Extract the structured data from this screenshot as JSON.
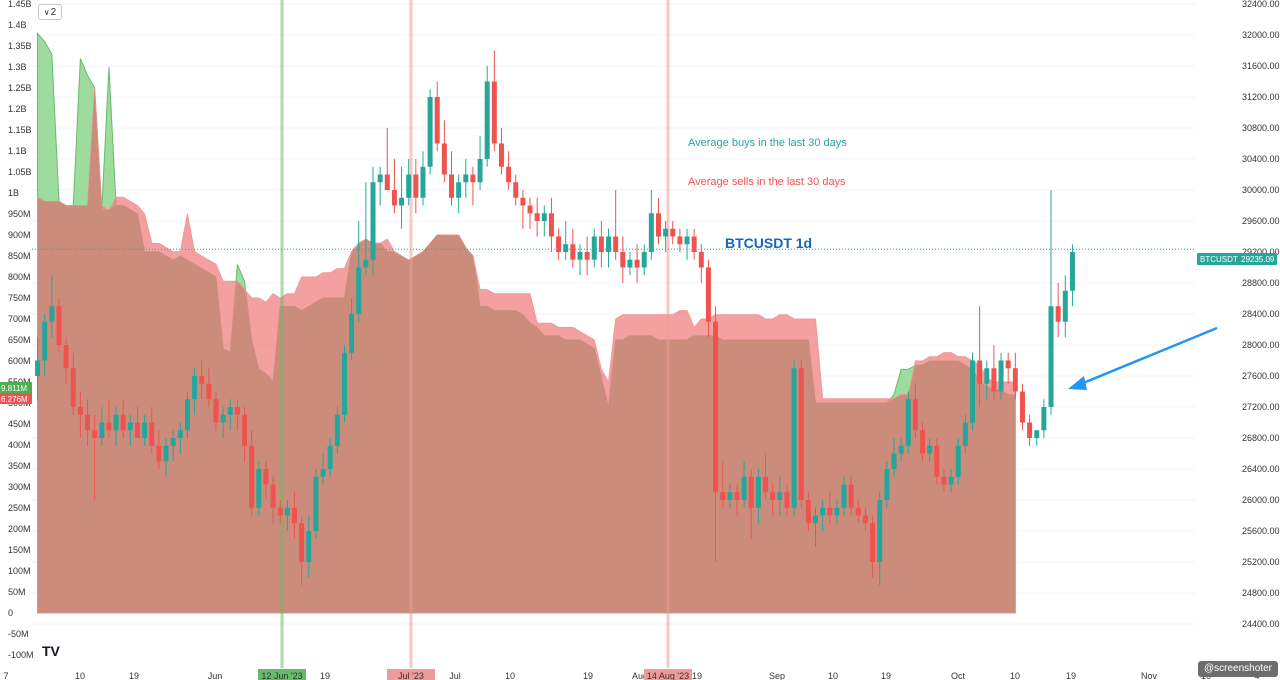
{
  "toolbar": {
    "indicator_count": "2",
    "chevron_icon": "chevron-down-icon"
  },
  "logo_text": "TV",
  "watermark": "@screenshoter",
  "chart_data": {
    "type": "candlestick",
    "title": "BTCUSDT 1d",
    "symbol": "BTCUSDT",
    "last_price": "29235.09",
    "last_price_value": 29235.09,
    "annotations": {
      "buys": "Average buys in the last 30 days",
      "sells": "Average sells in the last 30 days"
    },
    "volume_labels": {
      "buys": "9.811M",
      "sells": "6.276M"
    },
    "left_axis": {
      "ticks": [
        "1.45B",
        "1.4B",
        "1.35B",
        "1.3B",
        "1.25B",
        "1.2B",
        "1.15B",
        "1.1B",
        "1.05B",
        "1B",
        "950M",
        "900M",
        "850M",
        "800M",
        "750M",
        "700M",
        "650M",
        "600M",
        "550M",
        "500M",
        "450M",
        "400M",
        "350M",
        "300M",
        "250M",
        "200M",
        "150M",
        "100M",
        "50M",
        "0",
        "-50M",
        "-100M"
      ],
      "range": [
        -100000000,
        1450000000
      ]
    },
    "right_axis": {
      "ticks": [
        "32400.00",
        "32000.00",
        "31600.00",
        "31200.00",
        "30800.00",
        "30400.00",
        "30000.00",
        "29600.00",
        "29200.00",
        "28800.00",
        "28400.00",
        "28000.00",
        "27600.00",
        "27200.00",
        "26800.00",
        "26400.00",
        "26000.00",
        "25600.00",
        "25200.00",
        "24800.00",
        "24400.00"
      ],
      "range": [
        24000,
        32400
      ]
    },
    "x_axis": {
      "labels": [
        "7",
        "10",
        "19",
        "Jun",
        "19",
        "Jul",
        "10",
        "19",
        "Aug",
        "19",
        "Sep",
        "10",
        "19",
        "Oct",
        "10",
        "19",
        "Nov",
        "10",
        "4"
      ],
      "highlighted": [
        {
          "text": "12 Jun '23",
          "color": "#66bb6a"
        },
        {
          "text": "Jul '23",
          "color": "#ef9a9a"
        },
        {
          "text": "14 Aug '23",
          "color": "#ef9a9a"
        }
      ]
    },
    "vertical_markers": [
      {
        "date": "12 Jun '23",
        "color": "#66bb6a"
      },
      {
        "date": "Jul '23",
        "color": "#ef9a9a"
      },
      {
        "date": "14 Aug '23",
        "color": "#ef9a9a"
      }
    ],
    "colors": {
      "up": "#26a69a",
      "down": "#ef5350",
      "buys_area": "#7ed07e",
      "sells_area": "#f08080",
      "overlap": "#c8897a",
      "arrow": "#2196f3",
      "title": "#1565c0"
    },
    "buys_avg_volume": [
      1380000000.0,
      1360000000.0,
      1330000000.0,
      980000000.0,
      970000000.0,
      970000000.0,
      1320000000.0,
      1280000000.0,
      1250000000.0,
      960000000.0,
      1300000000.0,
      970000000.0,
      970000000.0,
      960000000.0,
      950000000.0,
      860000000.0,
      860000000.0,
      860000000.0,
      850000000.0,
      840000000.0,
      850000000.0,
      840000000.0,
      830000000.0,
      820000000.0,
      810000000.0,
      800000000.0,
      630000000.0,
      620000000.0,
      830000000.0,
      790000000.0,
      650000000.0,
      580000000.0,
      570000000.0,
      550000000.0,
      730000000.0,
      730000000.0,
      730000000.0,
      720000000.0,
      730000000.0,
      740000000.0,
      750000000.0,
      750000000.0,
      750000000.0,
      750000000.0,
      860000000.0,
      880000000.0,
      890000000.0,
      880000000.0,
      880000000.0,
      860000000.0,
      860000000.0,
      850000000.0,
      840000000.0,
      850000000.0,
      860000000.0,
      880000000.0,
      900000000.0,
      900000000.0,
      900000000.0,
      900000000.0,
      870000000.0,
      850000000.0,
      730000000.0,
      730000000.0,
      720000000.0,
      720000000.0,
      720000000.0,
      720000000.0,
      710000000.0,
      690000000.0,
      680000000.0,
      660000000.0,
      660000000.0,
      660000000.0,
      650000000.0,
      650000000.0,
      650000000.0,
      640000000.0,
      630000000.0,
      560000000.0,
      490000000.0,
      650000000.0,
      650000000.0,
      660000000.0,
      660000000.0,
      660000000.0,
      660000000.0,
      650000000.0,
      650000000.0,
      650000000.0,
      650000000.0,
      650000000.0,
      660000000.0,
      660000000.0,
      660000000.0,
      660000000.0,
      650000000.0,
      650000000.0,
      650000000.0,
      650000000.0,
      650000000.0,
      650000000.0,
      650000000.0,
      650000000.0,
      650000000.0,
      650000000.0,
      650000000.0,
      650000000.0,
      650000000.0,
      500000000.0,
      500000000.0,
      500000000.0,
      500000000.0,
      500000000.0,
      500000000.0,
      500000000.0,
      500000000.0,
      500000000.0,
      500000000.0,
      500000000.0,
      520000000.0,
      580000000.0,
      580000000.0,
      590000000.0,
      590000000.0,
      600000000.0,
      600000000.0,
      600000000.0,
      600000000.0,
      600000000.0,
      590000000.0,
      580000000.0,
      550000000.0,
      540000000.0,
      530000000.0,
      530000000.0,
      520000000.0,
      520000000.0
    ],
    "sells_avg_volume": [
      990000000.0,
      980000000.0,
      980000000.0,
      980000000.0,
      970000000.0,
      970000000.0,
      970000000.0,
      970000000.0,
      1250000000.0,
      970000000.0,
      960000000.0,
      990000000.0,
      990000000.0,
      980000000.0,
      970000000.0,
      950000000.0,
      880000000.0,
      880000000.0,
      870000000.0,
      860000000.0,
      860000000.0,
      950000000.0,
      860000000.0,
      850000000.0,
      840000000.0,
      830000000.0,
      790000000.0,
      790000000.0,
      790000000.0,
      770000000.0,
      750000000.0,
      750000000.0,
      740000000.0,
      760000000.0,
      750000000.0,
      760000000.0,
      760000000.0,
      800000000.0,
      800000000.0,
      800000000.0,
      810000000.0,
      810000000.0,
      820000000.0,
      820000000.0,
      860000000.0,
      880000000.0,
      890000000.0,
      880000000.0,
      880000000.0,
      890000000.0,
      860000000.0,
      850000000.0,
      840000000.0,
      850000000.0,
      860000000.0,
      880000000.0,
      900000000.0,
      900000000.0,
      900000000.0,
      900000000.0,
      870000000.0,
      850000000.0,
      770000000.0,
      770000000.0,
      760000000.0,
      760000000.0,
      760000000.0,
      760000000.0,
      760000000.0,
      760000000.0,
      690000000.0,
      690000000.0,
      690000000.0,
      680000000.0,
      680000000.0,
      680000000.0,
      670000000.0,
      660000000.0,
      650000000.0,
      580000000.0,
      550000000.0,
      700000000.0,
      710000000.0,
      710000000.0,
      710000000.0,
      710000000.0,
      710000000.0,
      710000000.0,
      710000000.0,
      710000000.0,
      720000000.0,
      720000000.0,
      680000000.0,
      700000000.0,
      700000000.0,
      710000000.0,
      710000000.0,
      710000000.0,
      710000000.0,
      710000000.0,
      710000000.0,
      710000000.0,
      700000000.0,
      700000000.0,
      710000000.0,
      710000000.0,
      700000000.0,
      700000000.0,
      700000000.0,
      700000000.0,
      510000000.0,
      510000000.0,
      510000000.0,
      510000000.0,
      510000000.0,
      510000000.0,
      510000000.0,
      510000000.0,
      510000000.0,
      510000000.0,
      510000000.0,
      520000000.0,
      520000000.0,
      600000000.0,
      600000000.0,
      610000000.0,
      610000000.0,
      620000000.0,
      620000000.0,
      610000000.0,
      610000000.0,
      600000000.0,
      590000000.0,
      560000000.0,
      550000000.0,
      550000000.0,
      550000000.0,
      550000000.0
    ],
    "candles": [
      [
        27600,
        28100,
        27300,
        27800
      ],
      [
        27800,
        28400,
        27600,
        28300
      ],
      [
        28300,
        28900,
        28100,
        28500
      ],
      [
        28500,
        28600,
        27900,
        28000
      ],
      [
        28000,
        28100,
        27500,
        27700
      ],
      [
        27700,
        27900,
        27100,
        27200
      ],
      [
        27200,
        27400,
        26800,
        27100
      ],
      [
        27100,
        27300,
        26700,
        26900
      ],
      [
        26900,
        27100,
        26000,
        26800
      ],
      [
        26800,
        27200,
        26700,
        27000
      ],
      [
        27000,
        27300,
        26800,
        26900
      ],
      [
        26900,
        27200,
        26700,
        27100
      ],
      [
        27100,
        27300,
        26800,
        26900
      ],
      [
        26900,
        27100,
        26700,
        27000
      ],
      [
        27000,
        27200,
        26800,
        26800
      ],
      [
        26800,
        27100,
        26700,
        27000
      ],
      [
        27000,
        27200,
        26600,
        26700
      ],
      [
        26700,
        26900,
        26400,
        26500
      ],
      [
        26500,
        26800,
        26300,
        26700
      ],
      [
        26700,
        26900,
        26500,
        26800
      ],
      [
        26800,
        27000,
        26600,
        26900
      ],
      [
        26900,
        27400,
        26800,
        27300
      ],
      [
        27300,
        27700,
        27100,
        27600
      ],
      [
        27600,
        27800,
        27300,
        27500
      ],
      [
        27500,
        27700,
        27200,
        27300
      ],
      [
        27300,
        27400,
        26900,
        27000
      ],
      [
        27000,
        27200,
        26800,
        27100
      ],
      [
        27100,
        27300,
        26900,
        27200
      ],
      [
        27200,
        27300,
        26900,
        27100
      ],
      [
        27100,
        27200,
        26500,
        26700
      ],
      [
        26700,
        26900,
        25800,
        25900
      ],
      [
        25900,
        26500,
        25800,
        26400
      ],
      [
        26400,
        26500,
        26000,
        26200
      ],
      [
        26200,
        26300,
        25700,
        25900
      ],
      [
        25900,
        26000,
        25700,
        25800
      ],
      [
        25800,
        26000,
        25600,
        25900
      ],
      [
        25900,
        26100,
        25500,
        25700
      ],
      [
        25700,
        25800,
        24900,
        25200
      ],
      [
        25200,
        25800,
        25000,
        25600
      ],
      [
        25600,
        26400,
        25500,
        26300
      ],
      [
        26300,
        26600,
        26200,
        26400
      ],
      [
        26400,
        26800,
        26300,
        26700
      ],
      [
        26700,
        27200,
        26600,
        27100
      ],
      [
        27100,
        28000,
        27000,
        27900
      ],
      [
        27900,
        28600,
        27800,
        28400
      ],
      [
        28400,
        29600,
        28300,
        29000
      ],
      [
        29000,
        30100,
        28900,
        29100
      ],
      [
        29100,
        30300,
        28900,
        30100
      ],
      [
        30100,
        30300,
        29800,
        30200
      ],
      [
        30200,
        30800,
        30100,
        30000
      ],
      [
        30000,
        30400,
        29700,
        29800
      ],
      [
        29800,
        30300,
        29500,
        29900
      ],
      [
        29900,
        30400,
        29800,
        30200
      ],
      [
        30200,
        30400,
        29700,
        29900
      ],
      [
        29900,
        30500,
        29800,
        30300
      ],
      [
        30300,
        31300,
        30200,
        31200
      ],
      [
        31200,
        31400,
        30500,
        30600
      ],
      [
        30600,
        30900,
        30100,
        30200
      ],
      [
        30200,
        30500,
        29800,
        29900
      ],
      [
        29900,
        30200,
        29700,
        30100
      ],
      [
        30100,
        30400,
        29900,
        30200
      ],
      [
        30200,
        30300,
        29800,
        30100
      ],
      [
        30100,
        30700,
        30000,
        30400
      ],
      [
        30400,
        31600,
        30300,
        31400
      ],
      [
        31400,
        31800,
        30500,
        30600
      ],
      [
        30600,
        30800,
        30200,
        30300
      ],
      [
        30300,
        30500,
        30000,
        30100
      ],
      [
        30100,
        30200,
        29800,
        29900
      ],
      [
        29900,
        30000,
        29500,
        29800
      ],
      [
        29800,
        29900,
        29500,
        29700
      ],
      [
        29700,
        29900,
        29400,
        29600
      ],
      [
        29600,
        29800,
        29400,
        29700
      ],
      [
        29700,
        29900,
        29200,
        29400
      ],
      [
        29400,
        29500,
        29100,
        29200
      ],
      [
        29200,
        29600,
        29100,
        29300
      ],
      [
        29300,
        29500,
        29000,
        29100
      ],
      [
        29100,
        29300,
        28900,
        29200
      ],
      [
        29200,
        29400,
        28900,
        29100
      ],
      [
        29100,
        29500,
        29000,
        29400
      ],
      [
        29400,
        29600,
        29000,
        29200
      ],
      [
        29200,
        29500,
        29000,
        29400
      ],
      [
        29400,
        30000,
        29100,
        29200
      ],
      [
        29200,
        29400,
        28800,
        29000
      ],
      [
        29000,
        29200,
        28900,
        29100
      ],
      [
        29100,
        29300,
        28800,
        29000
      ],
      [
        29000,
        29300,
        28900,
        29200
      ],
      [
        29200,
        30000,
        29100,
        29700
      ],
      [
        29700,
        29900,
        29300,
        29400
      ],
      [
        29400,
        29600,
        29200,
        29500
      ],
      [
        29500,
        29600,
        29300,
        29400
      ],
      [
        29400,
        29500,
        29200,
        29300
      ],
      [
        29300,
        29500,
        29100,
        29400
      ],
      [
        29400,
        29500,
        29100,
        29200
      ],
      [
        29200,
        29300,
        28800,
        29000
      ],
      [
        29000,
        29100,
        28100,
        28300
      ],
      [
        28300,
        28500,
        25200,
        26100
      ],
      [
        26100,
        26500,
        25900,
        26000
      ],
      [
        26000,
        26200,
        25900,
        26100
      ],
      [
        26100,
        26200,
        25800,
        26000
      ],
      [
        26000,
        26500,
        25900,
        26300
      ],
      [
        26300,
        26400,
        25500,
        25900
      ],
      [
        25900,
        26400,
        25700,
        26300
      ],
      [
        26300,
        26600,
        26000,
        26100
      ],
      [
        26100,
        26200,
        25800,
        26000
      ],
      [
        26000,
        26300,
        25800,
        26100
      ],
      [
        26100,
        26200,
        25800,
        25900
      ],
      [
        25900,
        27800,
        25800,
        27700
      ],
      [
        27700,
        27800,
        25900,
        26000
      ],
      [
        26000,
        26100,
        25600,
        25700
      ],
      [
        25700,
        25900,
        25400,
        25800
      ],
      [
        25800,
        26000,
        25600,
        25900
      ],
      [
        25900,
        26100,
        25700,
        25800
      ],
      [
        25800,
        26000,
        25700,
        25900
      ],
      [
        25900,
        26300,
        25800,
        26200
      ],
      [
        26200,
        26300,
        25800,
        25900
      ],
      [
        25900,
        26000,
        25700,
        25800
      ],
      [
        25800,
        25900,
        25600,
        25700
      ],
      [
        25700,
        25800,
        25000,
        25200
      ],
      [
        25200,
        26100,
        24900,
        26000
      ],
      [
        26000,
        26500,
        25900,
        26400
      ],
      [
        26400,
        26800,
        26300,
        26600
      ],
      [
        26600,
        26800,
        26500,
        26700
      ],
      [
        26700,
        27400,
        26600,
        27300
      ],
      [
        27300,
        27500,
        26800,
        26900
      ],
      [
        26900,
        27000,
        26500,
        26600
      ],
      [
        26600,
        26800,
        26500,
        26700
      ],
      [
        26700,
        26800,
        26200,
        26300
      ],
      [
        26300,
        26400,
        26100,
        26200
      ],
      [
        26200,
        26400,
        26100,
        26300
      ],
      [
        26300,
        26800,
        26200,
        26700
      ],
      [
        26700,
        27100,
        26600,
        27000
      ],
      [
        27000,
        27900,
        26900,
        27800
      ],
      [
        27800,
        28500,
        27200,
        27500
      ],
      [
        27500,
        27800,
        27300,
        27700
      ],
      [
        27700,
        28000,
        27300,
        27400
      ],
      [
        27400,
        27900,
        27300,
        27800
      ],
      [
        27800,
        27900,
        27500,
        27700
      ],
      [
        27700,
        27900,
        27300,
        27400
      ],
      [
        27400,
        27500,
        26900,
        27000
      ],
      [
        27000,
        27100,
        26700,
        26800
      ],
      [
        26800,
        26900,
        26700,
        26900
      ],
      [
        26900,
        27300,
        26800,
        27200
      ],
      [
        27200,
        30000,
        27100,
        28500
      ],
      [
        28500,
        28800,
        28100,
        28300
      ],
      [
        28300,
        28900,
        28100,
        28700
      ],
      [
        28700,
        29300,
        28500,
        29200
      ]
    ]
  }
}
